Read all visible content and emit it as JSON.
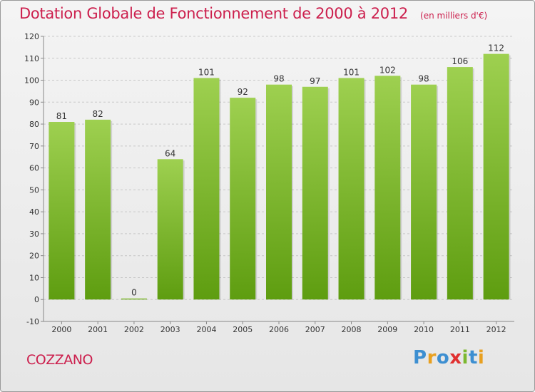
{
  "header": {
    "title": "Dotation Globale de Fonctionnement de 2000 à 2012",
    "subtitle": "(en milliers d'€)"
  },
  "footer": {
    "commune": "COZZANO",
    "brand": "Proxiti",
    "brand_colors": [
      "#3d8fd1",
      "#e8a020",
      "#3d8fd1",
      "#e03030",
      "#7cb82f",
      "#3d8fd1",
      "#e8a020"
    ]
  },
  "colors": {
    "title": "#cc1f4d",
    "bar_top": "#9ed050",
    "bar_bottom": "#5e9d10",
    "grid": "#c8c8c8",
    "axis": "#888888"
  },
  "chart_data": {
    "type": "bar",
    "title": "Dotation Globale de Fonctionnement de 2000 à 2012",
    "subtitle": "(en milliers d'€)",
    "xlabel": "",
    "ylabel": "",
    "categories": [
      "2000",
      "2001",
      "2002",
      "2003",
      "2004",
      "2005",
      "2006",
      "2007",
      "2008",
      "2009",
      "2010",
      "2011",
      "2012"
    ],
    "values": [
      81,
      82,
      0,
      64,
      101,
      92,
      98,
      97,
      101,
      102,
      98,
      106,
      112
    ],
    "ylim": [
      -10,
      120
    ],
    "yticks": [
      -10,
      0,
      10,
      20,
      30,
      40,
      50,
      60,
      70,
      80,
      90,
      100,
      110,
      120
    ],
    "grid": true,
    "legend": "none"
  }
}
